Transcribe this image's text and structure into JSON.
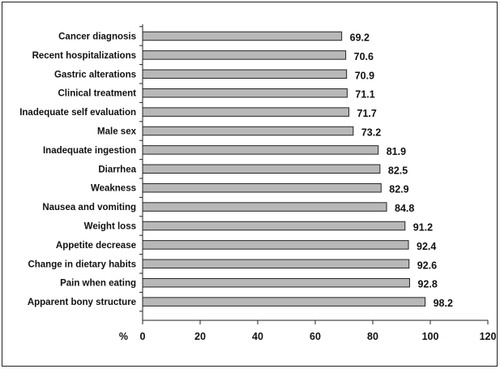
{
  "chart_data": {
    "type": "bar",
    "orientation": "horizontal",
    "xlabel": "%",
    "xlim": [
      0,
      120
    ],
    "xticks": [
      0,
      20,
      40,
      60,
      80,
      100,
      120
    ],
    "grid": false,
    "legend": "none",
    "bar_color": "#b8b8b8",
    "categories": [
      "Cancer diagnosis",
      "Recent hospitalizations",
      "Gastric alterations",
      "Clinical treatment",
      "Inadequate self evaluation",
      "Male sex",
      "Inadequate ingestion",
      "Diarrhea",
      "Weakness",
      "Nausea and vomiting",
      "Weight loss",
      "Appetite decrease",
      "Change in dietary habits",
      "Pain when eating",
      "Apparent bony structure"
    ],
    "values": [
      69.2,
      70.6,
      70.9,
      71.1,
      71.7,
      73.2,
      81.9,
      82.5,
      82.9,
      84.8,
      91.2,
      92.4,
      92.6,
      92.8,
      98.2
    ],
    "value_labels": [
      "69.2",
      "70.6",
      "70.9",
      "71.1",
      "71.7",
      "73.2",
      "81.9",
      "82.5",
      "82.9",
      "84.8",
      "91.2",
      "92.4",
      "92.6",
      "92.8",
      "98.2"
    ],
    "xtick_labels": [
      "0",
      "20",
      "40",
      "60",
      "80",
      "100",
      "120"
    ]
  }
}
